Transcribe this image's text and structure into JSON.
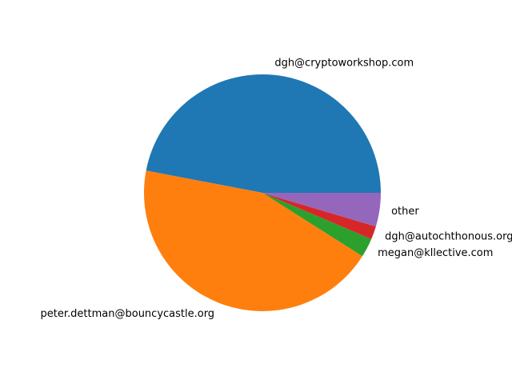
{
  "chart_data": {
    "type": "pie",
    "title": "",
    "categories": [
      "dgh@cryptoworkshop.com",
      "peter.dettman@bouncycastle.org",
      "megan@kllective.com",
      "dgh@autochthonous.org",
      "other"
    ],
    "values": [
      47.0,
      44.0,
      2.6,
      1.8,
      4.6
    ],
    "colors": [
      "#1f77b4",
      "#ff7f0e",
      "#2ca02c",
      "#d62728",
      "#9467bd"
    ],
    "start_angle_deg": 0,
    "direction": "counterclockwise",
    "legend": "none"
  }
}
